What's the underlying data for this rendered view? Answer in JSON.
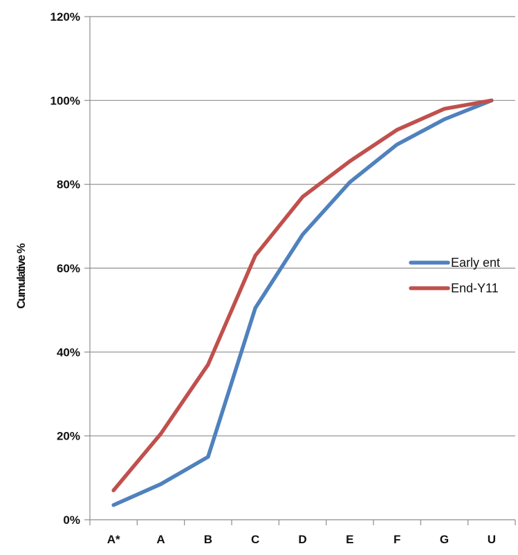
{
  "chart_data": {
    "type": "line",
    "categories": [
      "A*",
      "A",
      "B",
      "C",
      "D",
      "E",
      "F",
      "G",
      "U"
    ],
    "series": [
      {
        "name": "Early ent",
        "color": "#4F81BD",
        "values": [
          3.5,
          8.5,
          15.0,
          50.5,
          68.0,
          80.5,
          89.5,
          95.5,
          100.0
        ]
      },
      {
        "name": "End-Y11",
        "color": "#C0504D",
        "values": [
          7.0,
          20.5,
          37.0,
          63.0,
          77.0,
          85.5,
          93.0,
          98.0,
          100.0
        ]
      }
    ],
    "yticks": [
      "0%",
      "20%",
      "40%",
      "60%",
      "80%",
      "100%",
      "120%"
    ],
    "ylim": [
      0,
      120
    ],
    "ylabel": "Cumulative %",
    "xlabel": "",
    "title": "",
    "grid": true,
    "legend_position": "right"
  }
}
